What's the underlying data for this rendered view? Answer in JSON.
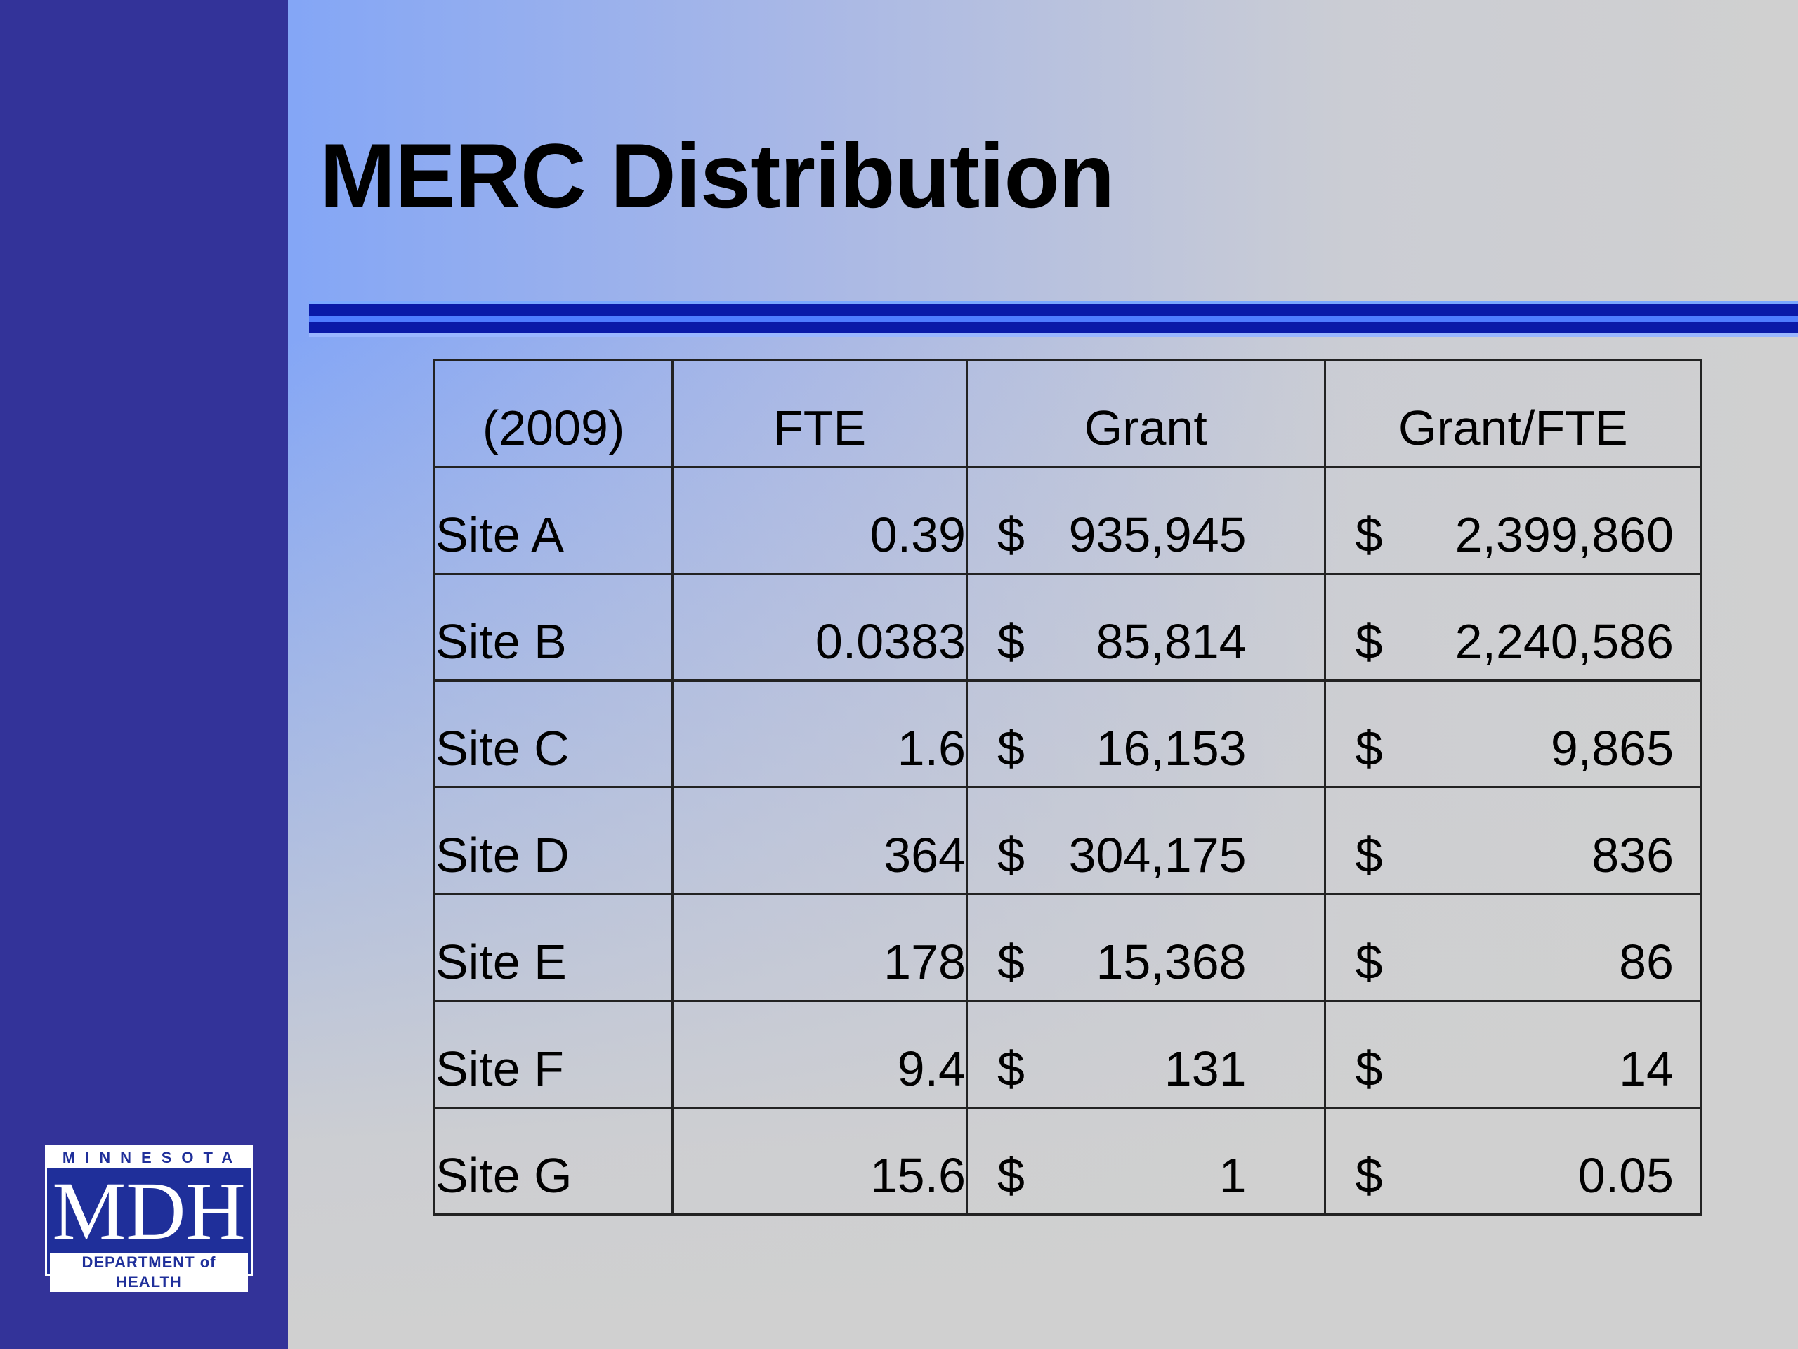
{
  "title": "MERC Distribution",
  "table": {
    "headers": [
      "(2009)",
      "FTE",
      "Grant",
      "Grant/FTE"
    ],
    "currency_symbol": "$",
    "rows": [
      {
        "site": "Site A",
        "fte": "0.39",
        "grant": "935,945",
        "grant_per_fte": "2,399,860"
      },
      {
        "site": "Site B",
        "fte": "0.0383",
        "grant": "85,814",
        "grant_per_fte": "2,240,586"
      },
      {
        "site": "Site C",
        "fte": "1.6",
        "grant": "16,153",
        "grant_per_fte": "9,865"
      },
      {
        "site": "Site D",
        "fte": "364",
        "grant": "304,175",
        "grant_per_fte": "836"
      },
      {
        "site": "Site E",
        "fte": "178",
        "grant": "15,368",
        "grant_per_fte": "86"
      },
      {
        "site": "Site F",
        "fte": "9.4",
        "grant": "131",
        "grant_per_fte": "14"
      },
      {
        "site": "Site G",
        "fte": "15.6",
        "grant": "1",
        "grant_per_fte": "0.05"
      }
    ]
  },
  "logo": {
    "top": "MINNESOTA",
    "main": "MDH",
    "bottom": "DEPARTMENT of HEALTH"
  },
  "colors": {
    "sidebar": "#333399",
    "rule": "#0a1aa8",
    "logo_background": "#1f2f9a"
  }
}
